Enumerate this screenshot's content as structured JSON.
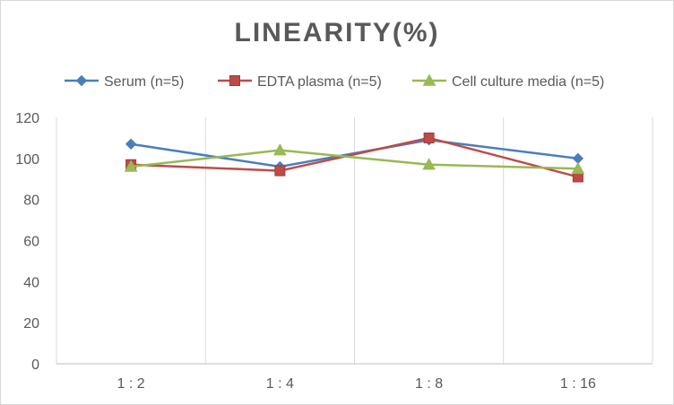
{
  "chart_data": {
    "type": "line",
    "title": "LINEARITY(%)",
    "categories": [
      "1:2",
      "1:4",
      "1:8",
      "1:16"
    ],
    "ylim": [
      0,
      120
    ],
    "yticks": [
      0,
      20,
      40,
      60,
      80,
      100,
      120
    ],
    "grid": "vertical category lines",
    "legend_position": "top",
    "series": [
      {
        "name": "Serum (n=5)",
        "values": [
          107,
          96,
          109,
          100
        ],
        "color": "#4a7ebb",
        "marker": "diamond"
      },
      {
        "name": "EDTA plasma (n=5)",
        "values": [
          97,
          94,
          110,
          91
        ],
        "color": "#be4b48",
        "marker": "square"
      },
      {
        "name": "Cell culture media (n=5)",
        "values": [
          96,
          104,
          97,
          95
        ],
        "color": "#98b954",
        "marker": "triangle"
      }
    ]
  }
}
